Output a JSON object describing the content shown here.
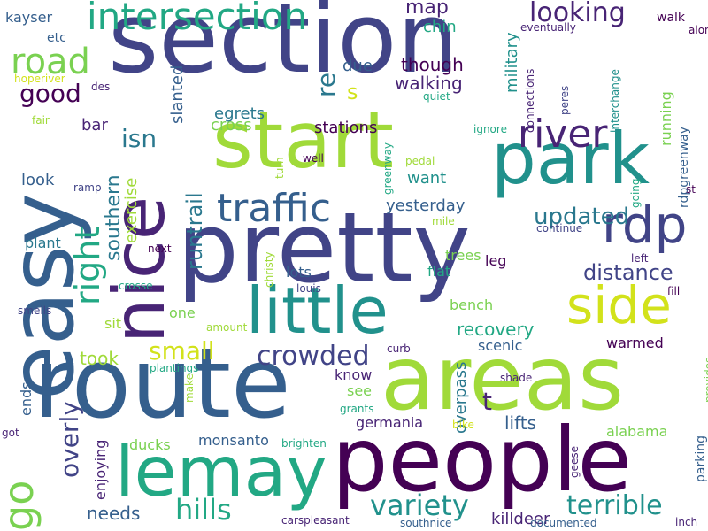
{
  "palette": {
    "navy": "#414487",
    "blue": "#2a788e",
    "steel": "#355f8d",
    "teal": "#21918c",
    "green": "#22a884",
    "lime": "#7ad151",
    "yellow": "#a0da39",
    "bright": "#d2e21b",
    "purple": "#440154",
    "indigo": "#482475",
    "mint": "#44bf70"
  },
  "words": [
    "section",
    "areas",
    "pretty",
    "people",
    "route",
    "easy",
    "start",
    "park",
    "lemay",
    "nice",
    "little",
    "side",
    "rdp",
    "traffic",
    "intersection",
    "river",
    "road",
    "go",
    "right",
    "looking",
    "variety",
    "crowded",
    "terrible",
    "hills",
    "overly",
    "good",
    "isn",
    "small",
    "updated",
    "distance",
    "yesterday",
    "runtrail",
    "southern",
    "killdeer",
    "t",
    "map",
    "re",
    "recovery",
    "s",
    "walking",
    "stations",
    "exercise",
    "military",
    "kayser",
    "though",
    "due",
    "chin",
    "slanted",
    "egrets",
    "cross",
    "bar",
    "look",
    "want",
    "took",
    "needs",
    "warmed",
    "scenic",
    "running",
    "rdpgreenway",
    "parking",
    "alabama",
    "lifts",
    "overpass",
    "lots",
    "flat",
    "trees",
    "leg",
    "bench",
    "germania",
    "know",
    "monsanto",
    "enjoying",
    "ducks",
    "ends",
    "plant",
    "sit",
    "one",
    "see",
    "etc",
    "walk",
    "eventually",
    "along",
    "hoperiver",
    "des",
    "quiet",
    "connections",
    "interchange",
    "peres",
    "fair",
    "ignore",
    "greenway",
    "pedal",
    "well",
    "turn",
    "ramp",
    "mile",
    "going",
    "st",
    "continue",
    "next",
    "christy",
    "left",
    "fill",
    "louis",
    "crosse",
    "smells",
    "amount",
    "plantings",
    "make",
    "curb",
    "shade",
    "provides",
    "grants",
    "bike",
    "geese",
    "got",
    "brighten",
    "carspleasant",
    "southnice",
    "documented",
    "inch"
  ]
}
